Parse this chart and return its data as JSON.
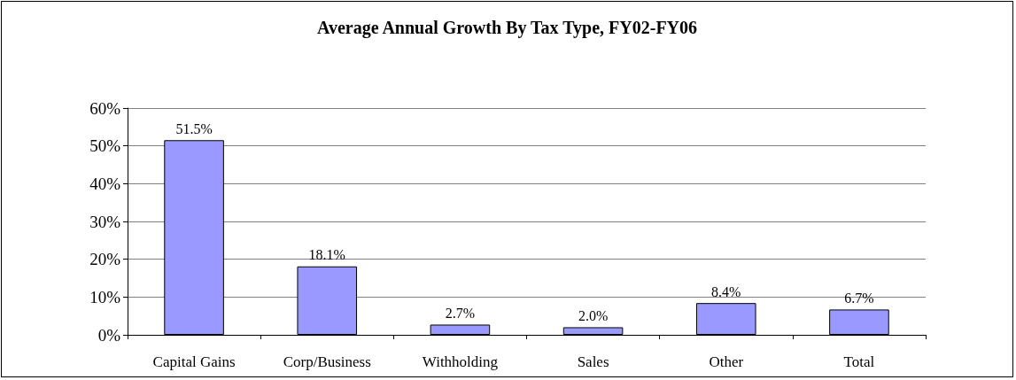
{
  "chart_data": {
    "type": "bar",
    "title": "Average Annual Growth By Tax Type, FY02-FY06",
    "categories": [
      "Capital Gains",
      "Corp/Business",
      "Withholding",
      "Sales",
      "Other",
      "Total"
    ],
    "values": [
      51.5,
      18.1,
      2.7,
      2.0,
      8.4,
      6.7
    ],
    "value_labels": [
      "51.5%",
      "18.1%",
      "2.7%",
      "2.0%",
      "8.4%",
      "6.7%"
    ],
    "color": "#9999ff",
    "ylim": [
      0,
      60
    ],
    "yticks": [
      {
        "value": 0,
        "label": "0%"
      },
      {
        "value": 10,
        "label": "10%"
      },
      {
        "value": 20,
        "label": "20%"
      },
      {
        "value": 30,
        "label": "30%"
      },
      {
        "value": 40,
        "label": "40%"
      },
      {
        "value": 50,
        "label": "50%"
      },
      {
        "value": 60,
        "label": "60%"
      }
    ],
    "grid": "y"
  }
}
